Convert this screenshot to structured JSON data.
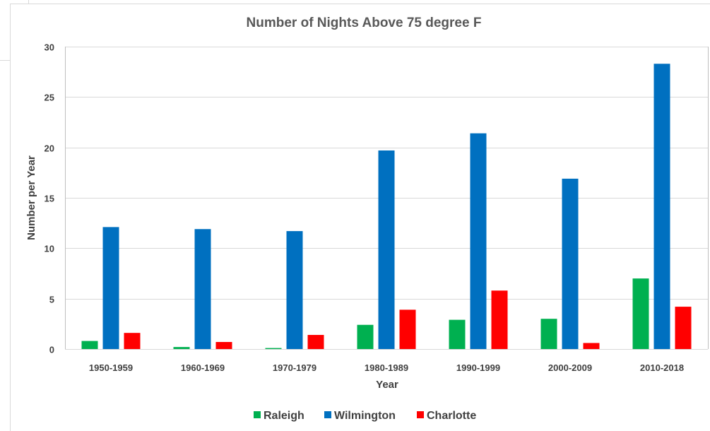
{
  "chart_data": {
    "type": "bar",
    "title": "Number of Nights Above 75 degree F",
    "xlabel": "Year",
    "ylabel": "Number per Year",
    "categories": [
      "1950-1959",
      "1960-1969",
      "1970-1979",
      "1980-1989",
      "1990-1999",
      "2000-2009",
      "2010-2018"
    ],
    "ylim": [
      0,
      30
    ],
    "yticks": [
      0,
      5,
      10,
      15,
      20,
      25,
      30
    ],
    "grid": true,
    "legend_position": "bottom",
    "series": [
      {
        "name": "Raleigh",
        "color": "#00B050",
        "values": [
          0.8,
          0.2,
          0.1,
          2.4,
          2.9,
          3.0,
          7.0
        ]
      },
      {
        "name": "Wilmington",
        "color": "#0070C0",
        "values": [
          12.1,
          11.9,
          11.7,
          19.7,
          21.4,
          16.9,
          28.3
        ]
      },
      {
        "name": "Charlotte",
        "color": "#FF0000",
        "values": [
          1.6,
          0.7,
          1.4,
          3.9,
          5.8,
          0.6,
          4.2
        ]
      }
    ]
  }
}
